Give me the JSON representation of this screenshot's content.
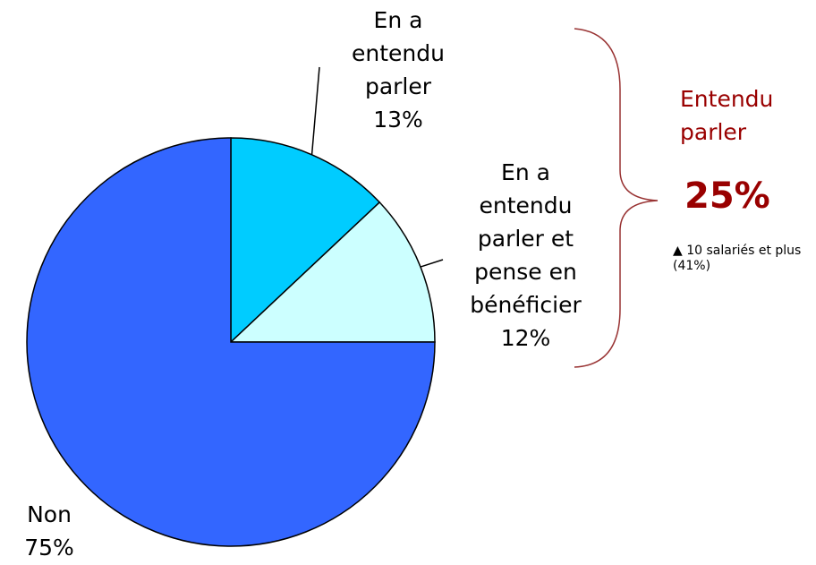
{
  "chart_data": {
    "type": "pie",
    "categories": [
      "En a entendu parler",
      "En a entendu parler et pense en bénéficier",
      "Non"
    ],
    "values": [
      13,
      12,
      75
    ],
    "value_labels": [
      "13%",
      "12%",
      "75%"
    ],
    "colors": [
      "#00ccff",
      "#ccffff",
      "#3366ff"
    ],
    "annotations": [
      "Entendu parler",
      "25%",
      "▲ 10 salariés et plus (41%)"
    ]
  }
}
